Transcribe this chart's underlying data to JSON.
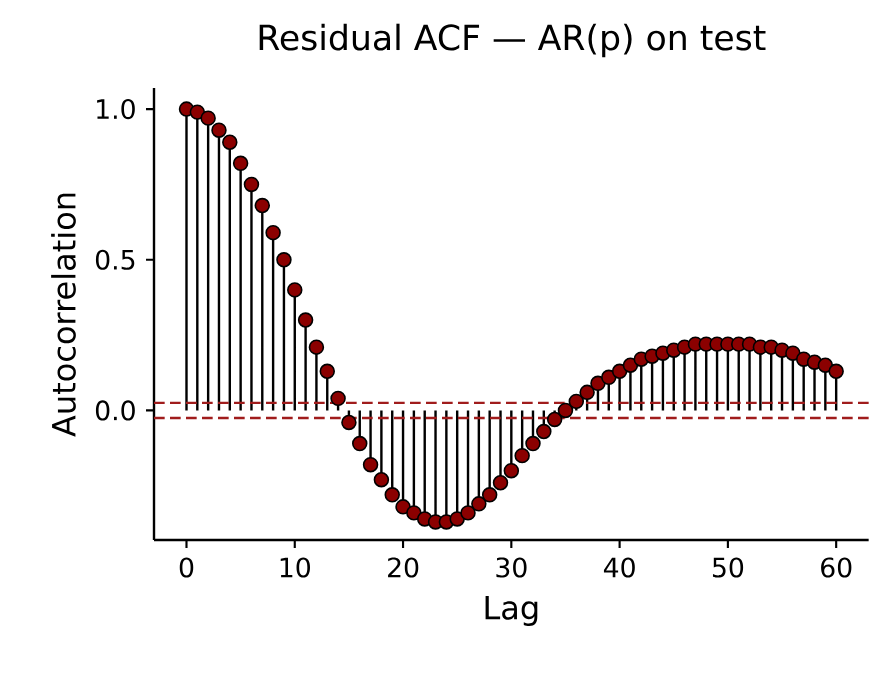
{
  "chart_data": {
    "type": "lollipop",
    "title": "Residual ACF — AR(p) on test",
    "xlabel": "Lag",
    "ylabel": "Autocorrelation",
    "x": [
      0,
      1,
      2,
      3,
      4,
      5,
      6,
      7,
      8,
      9,
      10,
      11,
      12,
      13,
      14,
      15,
      16,
      17,
      18,
      19,
      20,
      21,
      22,
      23,
      24,
      25,
      26,
      27,
      28,
      29,
      30,
      31,
      32,
      33,
      34,
      35,
      36,
      37,
      38,
      39,
      40,
      41,
      42,
      43,
      44,
      45,
      46,
      47,
      48,
      49,
      50,
      51,
      52,
      53,
      54,
      55,
      56,
      57,
      58,
      59,
      60
    ],
    "values": [
      1.0,
      0.99,
      0.97,
      0.93,
      0.89,
      0.82,
      0.75,
      0.68,
      0.59,
      0.5,
      0.4,
      0.3,
      0.21,
      0.13,
      0.04,
      -0.04,
      -0.11,
      -0.18,
      -0.23,
      -0.28,
      -0.32,
      -0.34,
      -0.36,
      -0.37,
      -0.37,
      -0.36,
      -0.34,
      -0.31,
      -0.28,
      -0.24,
      -0.2,
      -0.15,
      -0.11,
      -0.07,
      -0.03,
      0.0,
      0.03,
      0.06,
      0.09,
      0.11,
      0.13,
      0.15,
      0.17,
      0.18,
      0.19,
      0.2,
      0.21,
      0.22,
      0.22,
      0.22,
      0.22,
      0.22,
      0.22,
      0.21,
      0.21,
      0.2,
      0.19,
      0.17,
      0.16,
      0.15,
      0.13
    ],
    "color": "#8b0000",
    "marker": "circle",
    "xlim": [
      -3,
      63
    ],
    "ylim": [
      -0.43,
      1.07
    ],
    "xticks": [
      0,
      10,
      20,
      30,
      40,
      50,
      60
    ],
    "yticks": [
      {
        "value": 0,
        "label": "0.0"
      },
      {
        "value": 0.5,
        "label": "0.5"
      },
      {
        "value": 1,
        "label": "1.0"
      }
    ],
    "ref_lines": [
      {
        "axis": "y",
        "value": 0.025,
        "color": "#a01c1c",
        "line_style": "dashed"
      },
      {
        "axis": "y",
        "value": -0.025,
        "color": "#a01c1c",
        "line_style": "dashed"
      }
    ],
    "grid": false
  }
}
